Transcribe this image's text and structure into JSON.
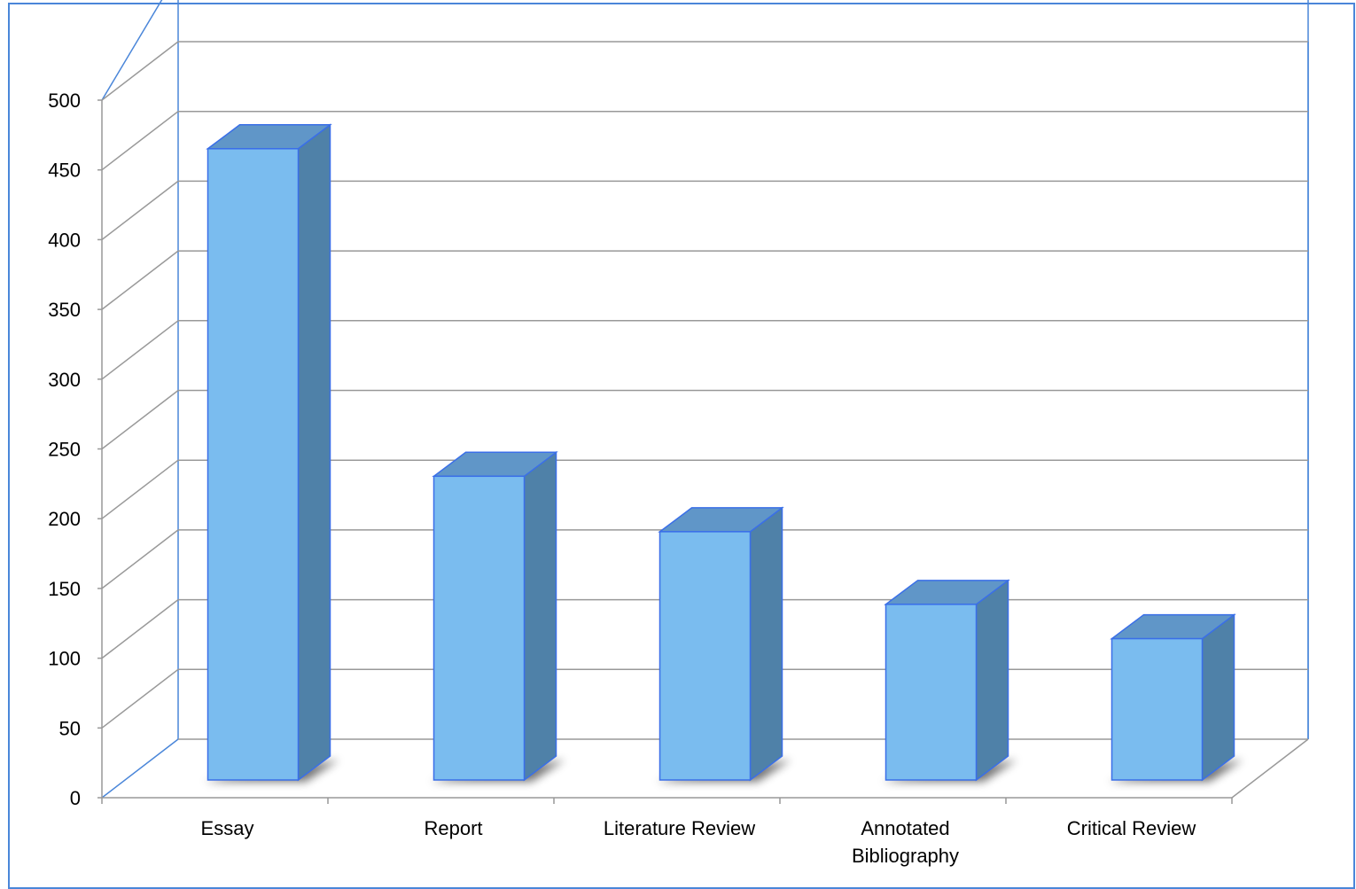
{
  "chart_data": {
    "type": "bar",
    "title": "",
    "xlabel": "",
    "ylabel": "",
    "categories": [
      "Essay",
      "Report",
      "Literature Review",
      "Annotated Bibliography",
      "Critical Review"
    ],
    "category_lines": [
      [
        "Essay"
      ],
      [
        "Report"
      ],
      [
        "Literature Review"
      ],
      [
        "Annotated",
        "Bibliography"
      ],
      [
        "Critical Review"
      ]
    ],
    "values": [
      478,
      230,
      188,
      133,
      107
    ],
    "ylim": [
      0,
      500
    ],
    "yticks": [
      "0",
      "50",
      "100",
      "150",
      "200",
      "250",
      "300",
      "350",
      "400",
      "450",
      "500"
    ],
    "grid": true,
    "legend": "none",
    "style": "3d-column",
    "colors": {
      "bar_front": "#7abcef",
      "bar_side": "#4f81a8",
      "bar_top": "#6096c8",
      "bar_edge": "#3a6fe8",
      "grid": "#999999",
      "axis_blue": "#4a86d9",
      "frame": "#4a86d9"
    }
  }
}
